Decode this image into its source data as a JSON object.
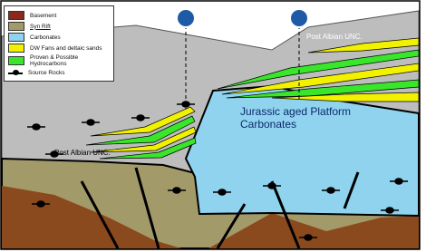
{
  "legend": {
    "items": [
      "Basement",
      "Syn Rift",
      "Carbonates",
      "DW Fans and deltaic sands",
      "Proven & Possible Hydrocarbons",
      "Source Rocks"
    ]
  },
  "labels": {
    "post_albian_upper": "Post Albian UNC.",
    "post_albian_lower": "Post Albian UNC.",
    "platform": "Jurassic aged Platform Carbonates"
  }
}
